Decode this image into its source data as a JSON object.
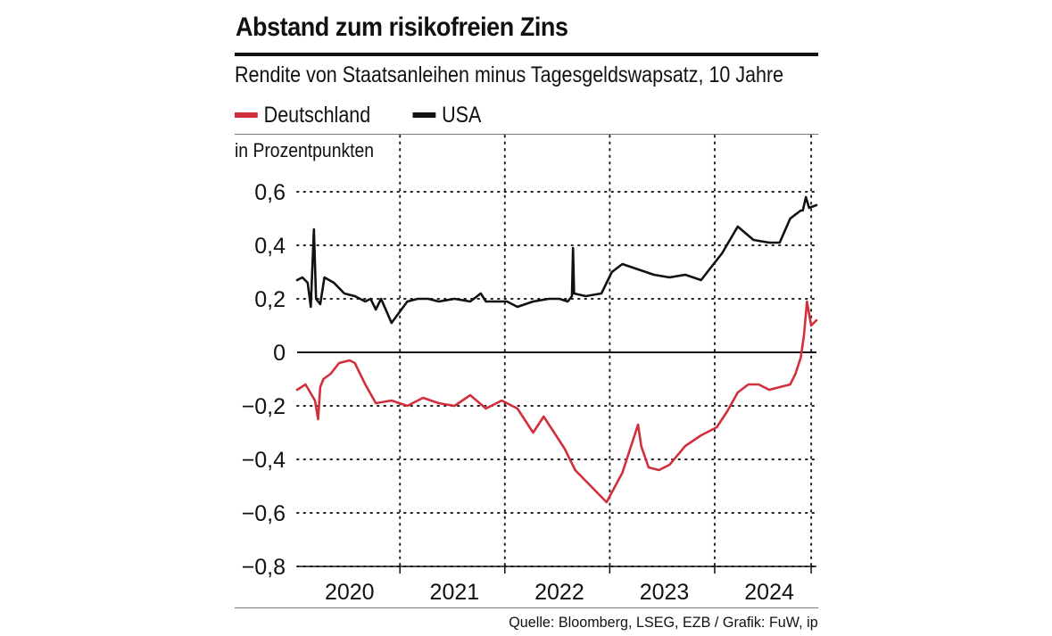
{
  "chart_data": {
    "type": "line",
    "title": "Abstand zum risikofreien Zins",
    "subtitle": "Rendite von Staatsanleihen minus Tagesgeldswapsatz, 10 Jahre",
    "unit_label": "in Prozentpunkten",
    "source": "Quelle: Bloomberg, LSEG, EZB / Grafik: FuW, ip",
    "legend_position": "top-left",
    "grid": true,
    "xlim": [
      2019.5,
      2024.45
    ],
    "ylim": [
      -0.8,
      0.6
    ],
    "yticks": [
      0.6,
      0.4,
      0.2,
      0,
      -0.2,
      -0.4,
      -0.6,
      -0.8
    ],
    "ytick_labels": [
      "0,6",
      "0,4",
      "0,2",
      "0",
      "−0,2",
      "−0,4",
      "−0,6",
      "−0,8"
    ],
    "xtick_labels": [
      "2020",
      "2021",
      "2022",
      "2023",
      "2024"
    ],
    "xtick_positions": [
      2020.0,
      2021.0,
      2022.0,
      2023.0,
      2024.0
    ],
    "series": [
      {
        "name": "Deutschland",
        "color": "#d22f3d",
        "x": [
          2019.5,
          2019.58,
          2019.67,
          2019.7,
          2019.72,
          2019.75,
          2019.82,
          2019.9,
          2020.0,
          2020.05,
          2020.1,
          2020.15,
          2020.25,
          2020.4,
          2020.55,
          2020.7,
          2020.85,
          2021.0,
          2021.15,
          2021.3,
          2021.45,
          2021.6,
          2021.75,
          2021.85,
          2021.95,
          2022.05,
          2022.15,
          2022.25,
          2022.35,
          2022.45,
          2022.6,
          2022.75,
          2022.78,
          2022.85,
          2022.95,
          2023.05,
          2023.2,
          2023.35,
          2023.5,
          2023.6,
          2023.7,
          2023.8,
          2023.9,
          2024.0,
          2024.1,
          2024.2,
          2024.25,
          2024.3,
          2024.33,
          2024.36,
          2024.4,
          2024.45
        ],
        "y": [
          -0.14,
          -0.12,
          -0.18,
          -0.25,
          -0.13,
          -0.1,
          -0.08,
          -0.04,
          -0.03,
          -0.04,
          -0.08,
          -0.12,
          -0.19,
          -0.18,
          -0.2,
          -0.17,
          -0.19,
          -0.2,
          -0.16,
          -0.21,
          -0.18,
          -0.21,
          -0.3,
          -0.24,
          -0.3,
          -0.36,
          -0.44,
          -0.48,
          -0.52,
          -0.56,
          -0.45,
          -0.27,
          -0.35,
          -0.43,
          -0.44,
          -0.42,
          -0.35,
          -0.31,
          -0.28,
          -0.22,
          -0.15,
          -0.12,
          -0.12,
          -0.14,
          -0.13,
          -0.12,
          -0.08,
          -0.02,
          0.06,
          0.19,
          0.1,
          0.12
        ]
      },
      {
        "name": "USA",
        "color": "#111111",
        "x": [
          2019.5,
          2019.55,
          2019.6,
          2019.63,
          2019.66,
          2019.68,
          2019.72,
          2019.76,
          2019.85,
          2019.95,
          2020.05,
          2020.15,
          2020.2,
          2020.25,
          2020.3,
          2020.4,
          2020.55,
          2020.65,
          2020.75,
          2020.85,
          2021.0,
          2021.15,
          2021.25,
          2021.3,
          2021.4,
          2021.5,
          2021.6,
          2021.75,
          2021.9,
          2022.0,
          2022.08,
          2022.12,
          2022.13,
          2022.14,
          2022.25,
          2022.4,
          2022.5,
          2022.6,
          2022.75,
          2022.9,
          2023.05,
          2023.2,
          2023.35,
          2023.45,
          2023.55,
          2023.7,
          2023.85,
          2024.0,
          2024.1,
          2024.2,
          2024.3,
          2024.32,
          2024.35,
          2024.38,
          2024.45
        ],
        "y": [
          0.27,
          0.28,
          0.26,
          0.17,
          0.46,
          0.2,
          0.18,
          0.28,
          0.26,
          0.22,
          0.21,
          0.19,
          0.2,
          0.16,
          0.2,
          0.11,
          0.19,
          0.2,
          0.2,
          0.19,
          0.2,
          0.19,
          0.22,
          0.19,
          0.19,
          0.19,
          0.17,
          0.19,
          0.2,
          0.2,
          0.19,
          0.21,
          0.39,
          0.22,
          0.21,
          0.22,
          0.3,
          0.33,
          0.31,
          0.29,
          0.28,
          0.29,
          0.27,
          0.32,
          0.37,
          0.47,
          0.42,
          0.41,
          0.41,
          0.5,
          0.53,
          0.53,
          0.58,
          0.54,
          0.55
        ]
      }
    ]
  }
}
